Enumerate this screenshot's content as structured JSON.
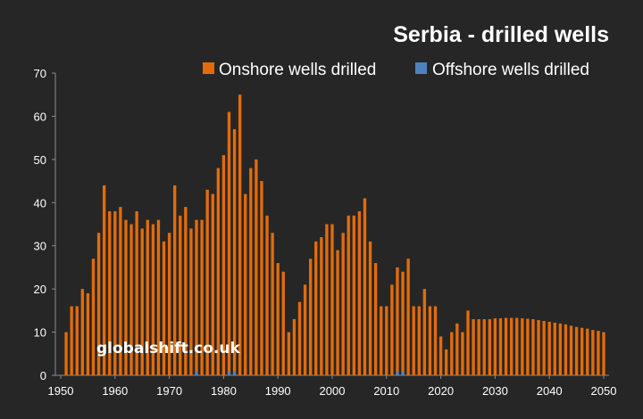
{
  "chart_data": {
    "type": "bar",
    "title": "Serbia - drilled wells",
    "xlabel": "",
    "ylabel": "",
    "xlim": [
      1950,
      2050
    ],
    "ylim": [
      0,
      70
    ],
    "ytick_step": 10,
    "xtick_step": 10,
    "grid": false,
    "legend_position": "top-right",
    "watermark": "globalshift.co.uk",
    "series": [
      {
        "name": "Onshore wells drilled",
        "color": "#E36C0A",
        "x": [
          1951,
          1952,
          1953,
          1954,
          1955,
          1956,
          1957,
          1958,
          1959,
          1960,
          1961,
          1962,
          1963,
          1964,
          1965,
          1966,
          1967,
          1968,
          1969,
          1970,
          1971,
          1972,
          1973,
          1974,
          1975,
          1976,
          1977,
          1978,
          1979,
          1980,
          1981,
          1982,
          1983,
          1984,
          1985,
          1986,
          1987,
          1988,
          1989,
          1990,
          1991,
          1992,
          1993,
          1994,
          1995,
          1996,
          1997,
          1998,
          1999,
          2000,
          2001,
          2002,
          2003,
          2004,
          2005,
          2006,
          2007,
          2008,
          2009,
          2010,
          2011,
          2012,
          2013,
          2014,
          2015,
          2016,
          2017,
          2018,
          2019,
          2020,
          2021,
          2022,
          2023,
          2024,
          2025,
          2026,
          2027,
          2028,
          2029,
          2030,
          2031,
          2032,
          2033,
          2034,
          2035,
          2036,
          2037,
          2038,
          2039,
          2040,
          2041,
          2042,
          2043,
          2044,
          2045,
          2046,
          2047,
          2048,
          2049,
          2050
        ],
        "values": [
          10,
          16,
          16,
          20,
          19,
          27,
          33,
          44,
          38,
          38,
          39,
          36,
          35,
          38,
          34,
          36,
          35,
          36,
          31,
          33,
          44,
          37,
          39,
          34,
          36,
          36,
          43,
          42,
          48,
          51,
          61,
          57,
          65,
          42,
          48,
          50,
          45,
          37,
          33,
          26,
          24,
          10,
          13,
          17,
          21,
          27,
          31,
          32,
          35,
          35,
          29,
          33,
          37,
          37,
          38,
          41,
          31,
          26,
          16,
          16,
          21,
          25,
          24,
          27,
          16,
          16,
          20,
          16,
          16,
          9,
          6,
          10,
          12,
          10,
          15,
          13,
          13,
          13,
          13,
          13.2,
          13.2,
          13.3,
          13.3,
          13.3,
          13.2,
          13.1,
          13,
          12.8,
          12.6,
          12.4,
          12.2,
          12,
          11.8,
          11.5,
          11.2,
          11,
          10.8,
          10.5,
          10.3,
          10
        ]
      },
      {
        "name": "Offshore wells drilled",
        "color": "#4F81BD",
        "x": [
          1975,
          1981,
          1982,
          2012,
          2013
        ],
        "values": [
          1,
          1,
          1,
          1,
          1
        ]
      }
    ]
  }
}
